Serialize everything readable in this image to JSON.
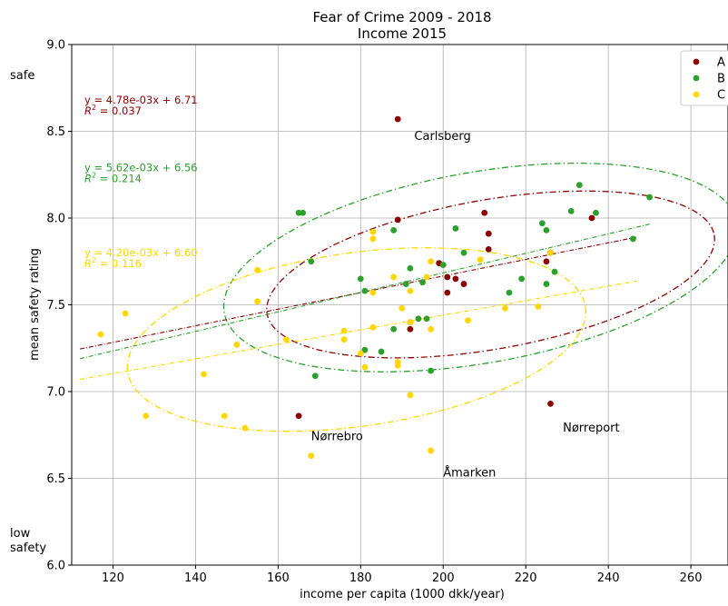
{
  "chart_data": {
    "type": "scatter",
    "title": "Fear of Crime 2009 - 2018",
    "subtitle": "Income 2015",
    "xlabel": "income per capita (1000 dkk/year)",
    "ylabel": "mean safety rating",
    "xlim": [
      110,
      269
    ],
    "ylim": [
      6.0,
      9.0
    ],
    "x_ticks": [
      120,
      140,
      160,
      180,
      200,
      220,
      240,
      260
    ],
    "y_ticks": [
      6.0,
      6.5,
      7.0,
      7.5,
      8.0,
      8.5,
      9.0
    ],
    "y_side_labels": [
      {
        "text": "safe",
        "y": 8.8
      },
      {
        "text": "low safety",
        "y": 6.12
      }
    ],
    "grid": true,
    "legend_position": "top-right",
    "series": [
      {
        "name": "A",
        "color": "#8b0000",
        "points": [
          [
            189,
            8.57
          ],
          [
            189,
            7.99
          ],
          [
            210,
            8.03
          ],
          [
            211,
            7.91
          ],
          [
            211,
            7.82
          ],
          [
            199,
            7.74
          ],
          [
            201,
            7.66
          ],
          [
            203,
            7.65
          ],
          [
            205,
            7.62
          ],
          [
            201,
            7.57
          ],
          [
            192,
            7.4
          ],
          [
            192,
            7.36
          ],
          [
            165,
            6.86
          ],
          [
            225,
            7.75
          ],
          [
            226,
            7.8
          ],
          [
            236,
            8.0
          ],
          [
            226,
            6.93
          ]
        ],
        "fit": {
          "slope": 0.00478,
          "intercept": 6.71,
          "equation": "y = 4.78e-03x + 6.71",
          "r2": "= 0.037",
          "x_range": [
            112,
            247
          ]
        },
        "ellipse": {
          "center": [
            211.5,
            7.675
          ],
          "radii": [
            55,
            0.43
          ],
          "angle_deg": 10
        }
      },
      {
        "name": "B",
        "color": "#2ca02c",
        "points": [
          [
            165,
            8.03
          ],
          [
            166,
            8.03
          ],
          [
            168,
            7.75
          ],
          [
            169,
            7.09
          ],
          [
            180,
            7.65
          ],
          [
            181,
            7.58
          ],
          [
            181,
            7.24
          ],
          [
            185,
            7.23
          ],
          [
            188,
            7.93
          ],
          [
            188,
            7.36
          ],
          [
            191,
            7.62
          ],
          [
            192,
            7.71
          ],
          [
            194,
            7.42
          ],
          [
            195,
            7.63
          ],
          [
            196,
            7.42
          ],
          [
            197,
            7.12
          ],
          [
            200,
            7.73
          ],
          [
            203,
            7.94
          ],
          [
            205,
            7.8
          ],
          [
            216,
            7.57
          ],
          [
            219,
            7.65
          ],
          [
            224,
            7.97
          ],
          [
            225,
            7.93
          ],
          [
            225,
            7.62
          ],
          [
            227,
            7.69
          ],
          [
            231,
            8.04
          ],
          [
            233,
            8.19
          ],
          [
            237,
            8.03
          ],
          [
            246,
            7.88
          ],
          [
            250,
            8.12
          ]
        ],
        "fit": {
          "slope": 0.00562,
          "intercept": 6.56,
          "equation": "y = 5.62e-03x + 6.56",
          "r2": "= 0.214",
          "x_range": [
            112,
            250
          ]
        },
        "ellipse": {
          "center": [
            209,
            7.715
          ],
          "radii": [
            63,
            0.55
          ],
          "angle_deg": 10
        }
      },
      {
        "name": "C",
        "color": "#ffd700",
        "points": [
          [
            117,
            7.33
          ],
          [
            123,
            7.45
          ],
          [
            128,
            6.86
          ],
          [
            142,
            7.1
          ],
          [
            147,
            6.86
          ],
          [
            150,
            7.27
          ],
          [
            152,
            6.79
          ],
          [
            155,
            7.7
          ],
          [
            155,
            7.52
          ],
          [
            162,
            7.3
          ],
          [
            168,
            6.63
          ],
          [
            176,
            7.35
          ],
          [
            176,
            7.3
          ],
          [
            180,
            7.22
          ],
          [
            181,
            7.14
          ],
          [
            183,
            7.92
          ],
          [
            183,
            7.88
          ],
          [
            183,
            7.57
          ],
          [
            183,
            7.37
          ],
          [
            188,
            7.66
          ],
          [
            189,
            7.17
          ],
          [
            189,
            7.15
          ],
          [
            190,
            7.48
          ],
          [
            192,
            7.58
          ],
          [
            192,
            7.4
          ],
          [
            192,
            6.98
          ],
          [
            196,
            7.66
          ],
          [
            197,
            7.75
          ],
          [
            197,
            7.36
          ],
          [
            197,
            6.66
          ],
          [
            206,
            7.41
          ],
          [
            209,
            7.76
          ],
          [
            215,
            7.48
          ],
          [
            223,
            7.49
          ],
          [
            226,
            7.8
          ]
        ],
        "fit": {
          "slope": 0.0042,
          "intercept": 6.6,
          "equation": "y = 4.20e-03x + 6.60",
          "r2": "= 0.116",
          "x_range": [
            112,
            247
          ]
        },
        "ellipse": {
          "center": [
            179,
            7.3
          ],
          "radii": [
            56,
            0.5
          ],
          "angle_deg": 8
        }
      }
    ],
    "annotations": [
      {
        "text": "Carlsberg",
        "x": 193,
        "y": 8.45
      },
      {
        "text": "Nørrebro",
        "x": 168,
        "y": 6.72
      },
      {
        "text": "Nørreport",
        "x": 229,
        "y": 6.77
      },
      {
        "text": "Åmarken",
        "x": 200,
        "y": 6.51
      }
    ]
  }
}
